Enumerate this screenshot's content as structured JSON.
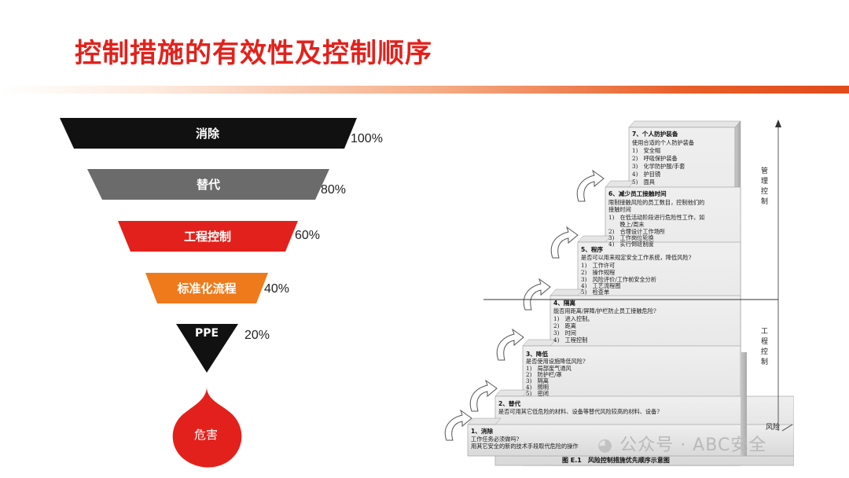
{
  "title": "控制措施的有效性及控制顺序",
  "funnel": {
    "levels": [
      {
        "label": "消除",
        "percent": "100%",
        "color": "#111111"
      },
      {
        "label": "替代",
        "percent": "80%",
        "color": "#6b6b6b"
      },
      {
        "label": "工程控制",
        "percent": "60%",
        "color": "#e3211c"
      },
      {
        "label": "标准化流程",
        "percent": "40%",
        "color": "#ef7a1c"
      },
      {
        "label": "PPE",
        "percent": "20%",
        "color": "#111111"
      }
    ],
    "hazard_label": "危害",
    "hazard_color": "#e3211c"
  },
  "staircase": {
    "steps": [
      {
        "title": "1、消除",
        "lines": [
          "工作任务必须做吗?",
          "用其它安全的新的技术手段取代危险的操作"
        ]
      },
      {
        "title": "2、替代",
        "lines": [
          "是否可用其它低危险的材料、设备等替代风险较高的材料、设备?"
        ]
      },
      {
        "title": "3、降低",
        "lines": [
          "是否使用设施降低风险?",
          "1)　局部废气通风",
          "2)　防护栏/罩",
          "3)　隔离",
          "4)　照明",
          "5)　密闭"
        ]
      },
      {
        "title": "4、隔离",
        "lines": [
          "能否用距离/屏障/护栏防止员工接触危险?",
          "1)　进入控制。",
          "2)　距离",
          "3)　时间",
          "4)　工程控制"
        ]
      },
      {
        "title": "5、程序",
        "lines": [
          "是否可以用来规定安全工作系统，降低风险?",
          "1)　工作许可",
          "2)　操作规程",
          "3)　风险评价/工作前安全分析",
          "4)　工艺流程图",
          "5)　检查单"
        ]
      },
      {
        "title": "6、减少员工接触时间",
        "lines": [
          "限制接触风险的员工数目，控制他们的",
          "接触时间",
          "1)　在低活动阶段进行危险性工作，如",
          "　　晚上/周末",
          "2)　合理设计工作场所",
          "3)　工作岗位轮换",
          "4)　实行倒班制度"
        ]
      },
      {
        "title": "7、个人防护装备",
        "lines": [
          "使用合适的个人防护装备",
          "1)　安全帽",
          "2)　呼吸保护装备",
          "3)　化学防护服/手套",
          "4)　护目镜",
          "5)　面具"
        ]
      }
    ],
    "side_labels": {
      "management": "管理控制",
      "engineering": "工程控制",
      "risk": "风险"
    },
    "caption": "图 E.1　风险控制措施优先顺序示意图"
  },
  "watermark": "公众号 · ABC安全"
}
